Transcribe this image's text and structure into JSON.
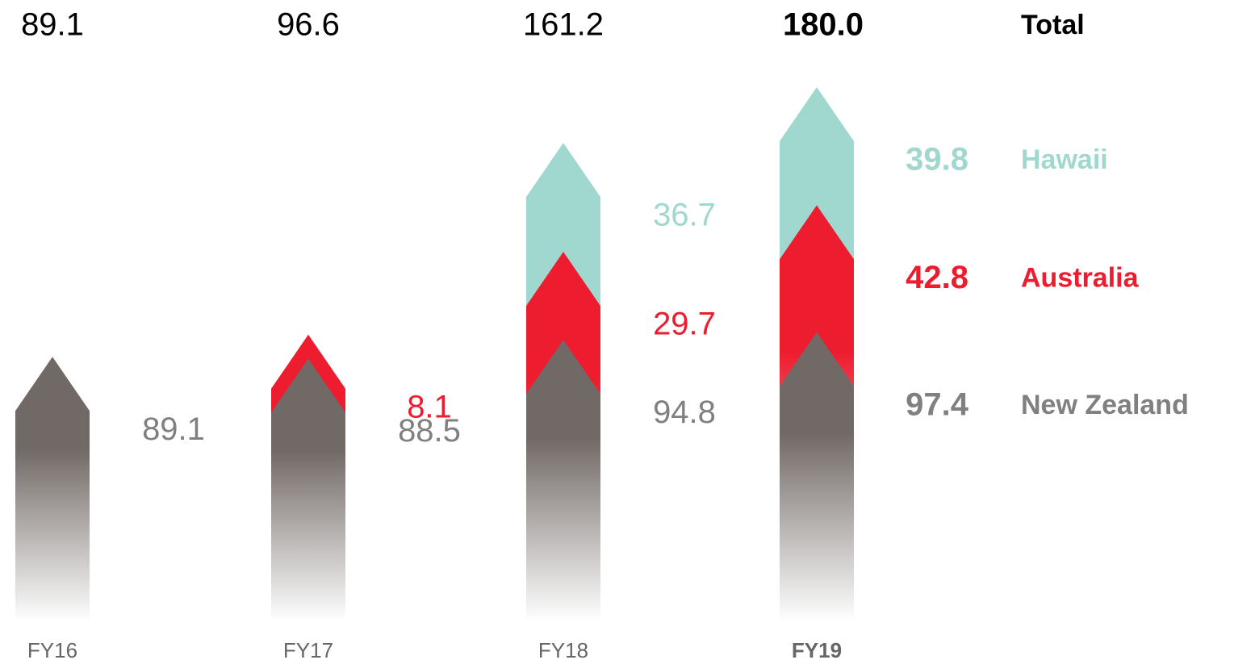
{
  "chart_data": {
    "type": "stacked-arrow",
    "categories": [
      "FY16",
      "FY17",
      "FY18",
      "FY19"
    ],
    "series": [
      {
        "name": "New Zealand",
        "color": "#716966",
        "label_color": "#808080",
        "values": [
          89.1,
          88.5,
          94.8,
          97.4
        ]
      },
      {
        "name": "Australia",
        "color": "#ed1c2e",
        "label_color": "#ed1c2e",
        "values": [
          null,
          8.1,
          29.7,
          42.8
        ]
      },
      {
        "name": "Hawaii",
        "color": "#a0d8cf",
        "label_color": "#a0d8cf",
        "values": [
          null,
          null,
          36.7,
          39.8
        ]
      }
    ],
    "total_name": "Total",
    "totals": [
      89.1,
      96.6,
      161.2,
      180.0
    ],
    "totals_value_labels": [
      "89.1",
      "96.6",
      "161.2",
      "180.0"
    ]
  }
}
